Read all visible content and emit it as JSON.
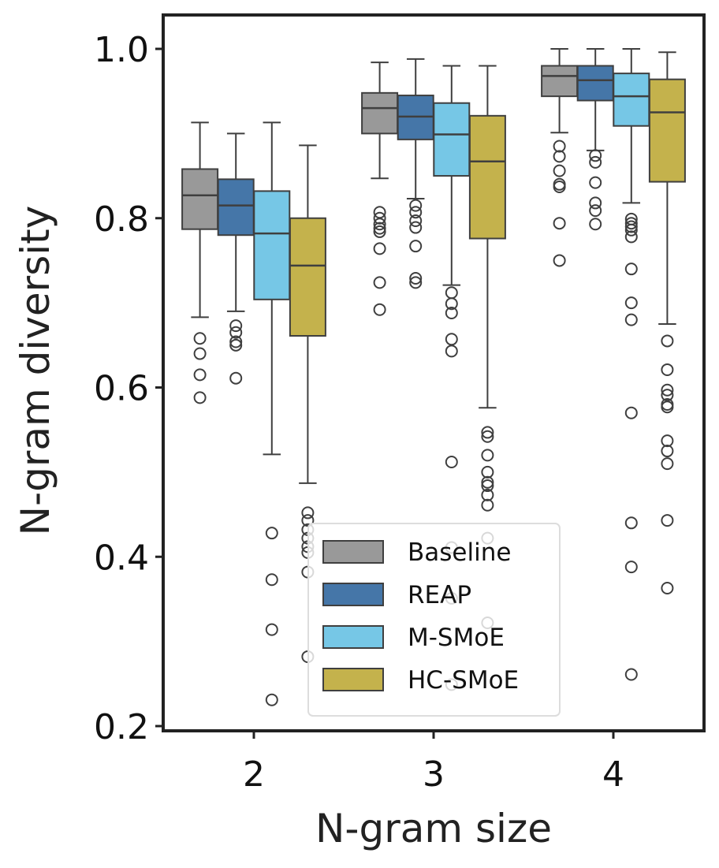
{
  "chart_data": {
    "type": "box",
    "xlabel": "N-gram size",
    "ylabel": "N-gram diversity",
    "categories": [
      "2",
      "3",
      "4"
    ],
    "ylim": [
      0.2,
      1.04
    ],
    "yticks": [
      "0.2",
      "0.4",
      "0.6",
      "0.8",
      "1.0"
    ],
    "grid": false,
    "legend_position": "lower-right",
    "series": [
      {
        "name": "Baseline",
        "color": "#999999",
        "boxes": [
          {
            "whisker_low": 0.683,
            "q1": 0.787,
            "median": 0.827,
            "q3": 0.858,
            "whisker_high": 0.913,
            "outliers": [
              0.658,
              0.64,
              0.615,
              0.588
            ]
          },
          {
            "whisker_low": 0.847,
            "q1": 0.9,
            "median": 0.93,
            "q3": 0.948,
            "whisker_high": 0.984,
            "outliers": [
              0.807,
              0.8,
              0.793,
              0.788,
              0.784,
              0.764,
              0.724,
              0.692
            ]
          },
          {
            "whisker_low": 0.901,
            "q1": 0.944,
            "median": 0.968,
            "q3": 0.98,
            "whisker_high": 1.0,
            "outliers": [
              0.885,
              0.873,
              0.856,
              0.84,
              0.837,
              0.794,
              0.75
            ]
          }
        ]
      },
      {
        "name": "REAP",
        "color": "#4576a8",
        "boxes": [
          {
            "whisker_low": 0.69,
            "q1": 0.78,
            "median": 0.815,
            "q3": 0.846,
            "whisker_high": 0.9,
            "outliers": [
              0.673,
              0.665,
              0.654,
              0.65,
              0.611
            ]
          },
          {
            "whisker_low": 0.823,
            "q1": 0.893,
            "median": 0.92,
            "q3": 0.945,
            "whisker_high": 0.988,
            "outliers": [
              0.815,
              0.807,
              0.797,
              0.789,
              0.767,
              0.729,
              0.724
            ]
          },
          {
            "whisker_low": 0.88,
            "q1": 0.939,
            "median": 0.963,
            "q3": 0.98,
            "whisker_high": 1.0,
            "outliers": [
              0.874,
              0.866,
              0.842,
              0.818,
              0.809,
              0.793
            ]
          }
        ]
      },
      {
        "name": "M-SMoE",
        "color": "#76c7e6",
        "boxes": [
          {
            "whisker_low": 0.521,
            "q1": 0.704,
            "median": 0.782,
            "q3": 0.832,
            "whisker_high": 0.913,
            "outliers": [
              0.428,
              0.373,
              0.314,
              0.231
            ]
          },
          {
            "whisker_low": 0.721,
            "q1": 0.85,
            "median": 0.899,
            "q3": 0.936,
            "whisker_high": 0.98,
            "outliers": [
              0.712,
              0.699,
              0.688,
              0.657,
              0.643,
              0.512,
              0.411,
              0.351,
              0.249
            ]
          },
          {
            "whisker_low": 0.818,
            "q1": 0.909,
            "median": 0.944,
            "q3": 0.971,
            "whisker_high": 1.0,
            "outliers": [
              0.799,
              0.794,
              0.79,
              0.786,
              0.778,
              0.74,
              0.7,
              0.68,
              0.57,
              0.44,
              0.388,
              0.261
            ]
          }
        ]
      },
      {
        "name": "HC-SMoE",
        "color": "#c4b24c",
        "boxes": [
          {
            "whisker_low": 0.487,
            "q1": 0.661,
            "median": 0.744,
            "q3": 0.8,
            "whisker_high": 0.886,
            "outliers": [
              0.452,
              0.443,
              0.432,
              0.422,
              0.412,
              0.405,
              0.382,
              0.282
            ]
          },
          {
            "whisker_low": 0.576,
            "q1": 0.776,
            "median": 0.867,
            "q3": 0.921,
            "whisker_high": 0.98,
            "outliers": [
              0.547,
              0.542,
              0.52,
              0.5,
              0.488,
              0.484,
              0.473,
              0.461,
              0.422,
              0.322
            ]
          },
          {
            "whisker_low": 0.675,
            "q1": 0.843,
            "median": 0.925,
            "q3": 0.964,
            "whisker_high": 0.996,
            "outliers": [
              0.655,
              0.621,
              0.597,
              0.591,
              0.58,
              0.577,
              0.537,
              0.525,
              0.51,
              0.443,
              0.363
            ]
          }
        ]
      }
    ]
  }
}
